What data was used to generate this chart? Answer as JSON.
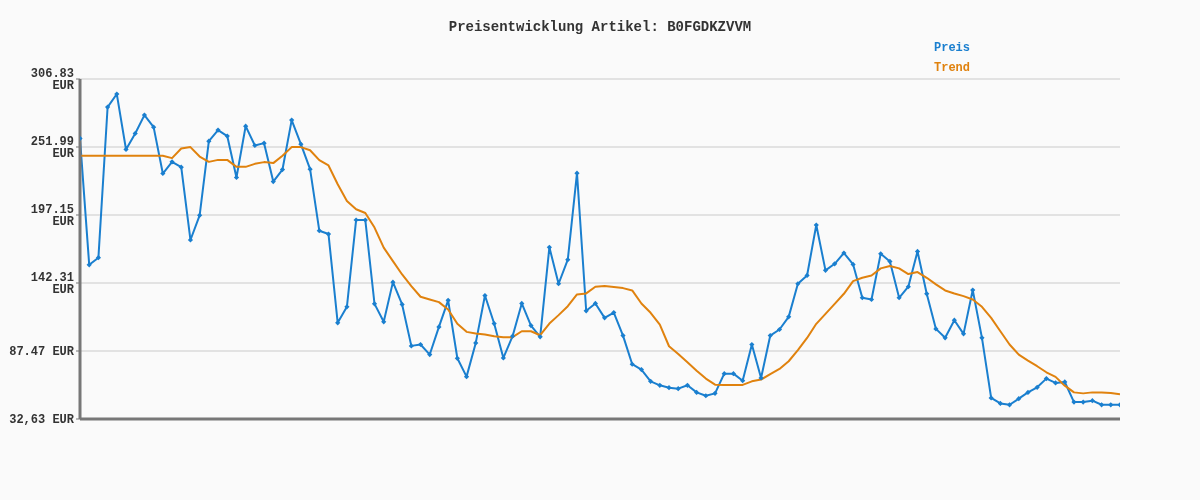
{
  "chart_data": {
    "type": "line",
    "title": "Preisentwicklung Artikel: B0FGDKZVVM",
    "categories": [
      null,
      null,
      null,
      null,
      null,
      null,
      null,
      null,
      null,
      null,
      null,
      null,
      null,
      null,
      null,
      null,
      null,
      null,
      null,
      null,
      null,
      null,
      null,
      null,
      null,
      null,
      null,
      null,
      null,
      null,
      null,
      null,
      null,
      null,
      null,
      null,
      null,
      null,
      null,
      null,
      null,
      null,
      null,
      null,
      null,
      null,
      null,
      null,
      null,
      null,
      null,
      null,
      null,
      null,
      null,
      null,
      null,
      null,
      null,
      null,
      null,
      null,
      null,
      null,
      null,
      null,
      null,
      null,
      null,
      null,
      null,
      null,
      null,
      null,
      null,
      null,
      null,
      null,
      null,
      null,
      null,
      null,
      null,
      null,
      null,
      null,
      null,
      null,
      null,
      null,
      null,
      null,
      null,
      null,
      null,
      null,
      null,
      null,
      null,
      null,
      null,
      null,
      null,
      null,
      null,
      null,
      null,
      null,
      null,
      null,
      null,
      null,
      null,
      null
    ],
    "series": [
      {
        "name": "Preis",
        "color": "#1a7fcf",
        "marker": "diamond",
        "values": [
          258.9,
          157.0,
          162.7,
          284.2,
          294.7,
          250.0,
          262.9,
          277.7,
          268.0,
          230.6,
          240.0,
          235.7,
          177.0,
          196.9,
          256.7,
          265.6,
          260.8,
          227.4,
          268.8,
          253.2,
          255.1,
          224.1,
          233.8,
          273.7,
          254.3,
          234.1,
          184.5,
          181.8,
          110.2,
          123.1,
          193.1,
          193.1,
          125.5,
          111.0,
          143.0,
          125.0,
          91.6,
          92.7,
          84.6,
          106.9,
          128.3,
          81.6,
          66.8,
          94.0,
          132.2,
          109.6,
          81.9,
          99.4,
          125.8,
          108.0,
          98.9,
          171.1,
          141.7,
          161.1,
          230.9,
          119.9,
          125.8,
          114.2,
          118.5,
          99.9,
          76.8,
          72.5,
          63.0,
          59.8,
          57.9,
          57.1,
          59.8,
          54.1,
          51.4,
          53.3,
          69.2,
          69.2,
          63.5,
          92.7,
          65.7,
          99.9,
          104.8,
          115.0,
          141.7,
          148.4,
          189.1,
          152.5,
          157.8,
          166.5,
          157.3,
          130.4,
          129.0,
          165.9,
          159.7,
          130.4,
          139.3,
          167.8,
          133.6,
          105.3,
          98.1,
          112.3,
          101.3,
          136.6,
          98.1,
          49.6,
          45.2,
          44.1,
          49.0,
          54.1,
          58.2,
          65.2,
          61.7,
          62.5,
          46.3,
          46.3,
          47.4,
          44.1,
          44.1,
          44.1
        ]
      },
      {
        "name": "Trend",
        "color": "#e0820e",
        "marker": "none",
        "values": [
          244.9,
          244.9,
          244.9,
          244.9,
          244.9,
          244.9,
          244.9,
          244.9,
          244.9,
          244.9,
          243.0,
          250.8,
          251.9,
          244.3,
          240.0,
          241.6,
          241.6,
          236.0,
          236.0,
          238.4,
          239.8,
          239.0,
          244.9,
          251.9,
          251.9,
          249.4,
          241.4,
          237.1,
          222.0,
          208.5,
          201.8,
          198.8,
          187.0,
          170.8,
          160.0,
          149.2,
          139.8,
          131.2,
          129.0,
          126.9,
          121.0,
          109.4,
          102.9,
          101.6,
          100.8,
          99.4,
          98.6,
          98.6,
          103.4,
          103.4,
          100.2,
          109.6,
          116.4,
          123.6,
          133.1,
          133.9,
          139.3,
          139.8,
          139.0,
          138.2,
          136.3,
          125.8,
          118.3,
          108.8,
          91.3,
          85.1,
          78.4,
          71.6,
          65.2,
          60.3,
          60.1,
          60.1,
          60.1,
          63.0,
          64.4,
          68.9,
          73.0,
          79.2,
          88.1,
          98.0,
          109.4,
          117.4,
          125.5,
          133.6,
          143.8,
          146.5,
          148.4,
          154.1,
          156.0,
          154.1,
          149.5,
          151.1,
          146.5,
          141.2,
          136.3,
          133.9,
          131.7,
          129.0,
          123.1,
          114.2,
          103.4,
          92.7,
          84.6,
          79.7,
          75.2,
          70.3,
          66.6,
          59.5,
          54.1,
          53.3,
          54.1,
          54.1,
          53.6,
          52.5
        ]
      }
    ],
    "ylim": [
      32.63,
      306.83
    ],
    "yticks": [
      {
        "value": 32.63,
        "label": "32,63 EUR"
      },
      {
        "value": 87.47,
        "label": "87.47 EUR"
      },
      {
        "value": 142.31,
        "label": "142.31 EUR"
      },
      {
        "value": 197.15,
        "label": "197.15 EUR"
      },
      {
        "value": 251.99,
        "label": "251.99 EUR"
      },
      {
        "value": 306.83,
        "label": "306.83 EUR"
      }
    ],
    "grid": "y",
    "legend": "top right",
    "tick_labels": "y",
    "line_style": "solid"
  }
}
